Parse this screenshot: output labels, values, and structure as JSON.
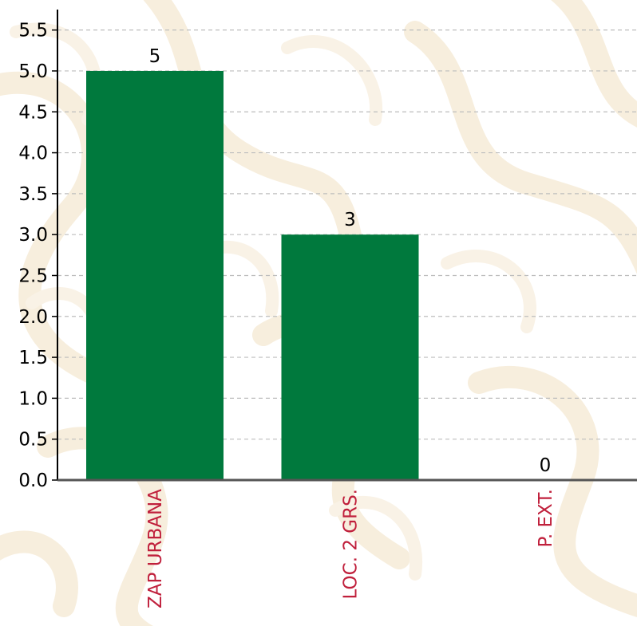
{
  "chart_data": {
    "type": "bar",
    "categories": [
      "ZAP URBANA",
      "LOC. 2 GRS.",
      "P. EXT."
    ],
    "values": [
      5,
      3,
      0
    ],
    "data_labels": [
      "5",
      "3",
      "0"
    ],
    "title": "",
    "xlabel": "",
    "ylabel": "",
    "ylim": [
      0,
      5.75
    ],
    "yticks": [
      0.0,
      0.5,
      1.0,
      1.5,
      2.0,
      2.5,
      3.0,
      3.5,
      4.0,
      4.5,
      5.0,
      5.5
    ],
    "ytick_labels": [
      "0.0",
      "0.5",
      "1.0",
      "1.5",
      "2.0",
      "2.5",
      "3.0",
      "3.5",
      "4.0",
      "4.5",
      "5.0",
      "5.5"
    ],
    "grid": true,
    "grid_style": "dashed-horizontal",
    "legend": "none",
    "category_label_rotation": "vertical"
  },
  "colors": {
    "bar": "#00793d",
    "category_label": "#c0203c",
    "grid": "#bdbdbd",
    "axis": "#000000",
    "background_pattern": "#f6ecd9"
  }
}
